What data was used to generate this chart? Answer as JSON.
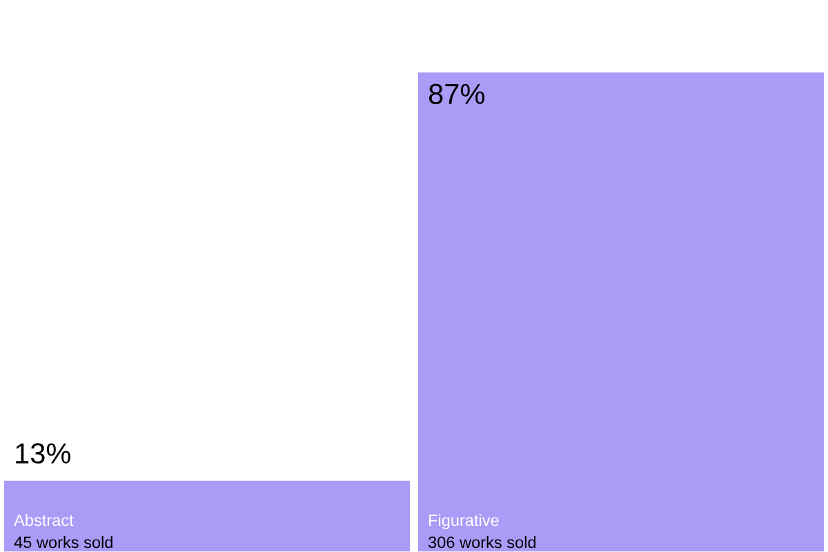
{
  "chart_data": {
    "type": "bar",
    "categories": [
      "Abstract",
      "Figurative"
    ],
    "values": [
      13,
      87
    ],
    "value_labels": [
      "13%",
      "87%"
    ],
    "annotations": [
      "45 works sold",
      "306 works sold"
    ],
    "color": "#a99cf7"
  }
}
